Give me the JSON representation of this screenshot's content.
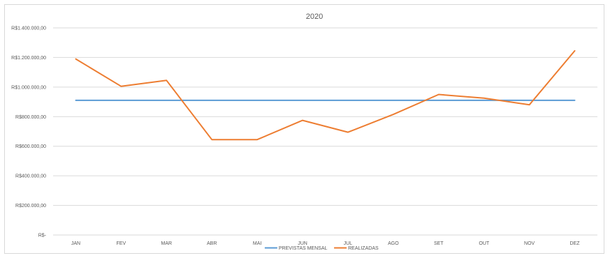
{
  "chart_data": {
    "type": "line",
    "title": "2020",
    "xlabel": "",
    "ylabel": "",
    "categories": [
      "JAN",
      "FEV",
      "MAR",
      "ABR",
      "MAI",
      "JUN",
      "JUL",
      "AGO",
      "SET",
      "OUT",
      "NOV",
      "DEZ"
    ],
    "ylim": [
      0,
      1400000
    ],
    "yticks": [
      0,
      200000,
      400000,
      600000,
      800000,
      1000000,
      1200000,
      1400000
    ],
    "ytick_labels": [
      "R$-",
      "R$200.000,00",
      "R$400.000,00",
      "R$600.000,00",
      "R$800.000,00",
      "R$1.000.000,00",
      "R$1.200.000,00",
      "R$1.400.000,00"
    ],
    "grid": true,
    "legend_position": "bottom",
    "series": [
      {
        "name": "PREVISTAS MENSAL",
        "color": "#5b9bd5",
        "values": [
          910000,
          910000,
          910000,
          910000,
          910000,
          910000,
          910000,
          910000,
          910000,
          910000,
          910000,
          910000
        ]
      },
      {
        "name": "REALIZADAS",
        "color": "#ed7d31",
        "values": [
          1190000,
          1005000,
          1045000,
          645000,
          645000,
          775000,
          695000,
          815000,
          950000,
          925000,
          880000,
          1245000
        ]
      }
    ]
  }
}
